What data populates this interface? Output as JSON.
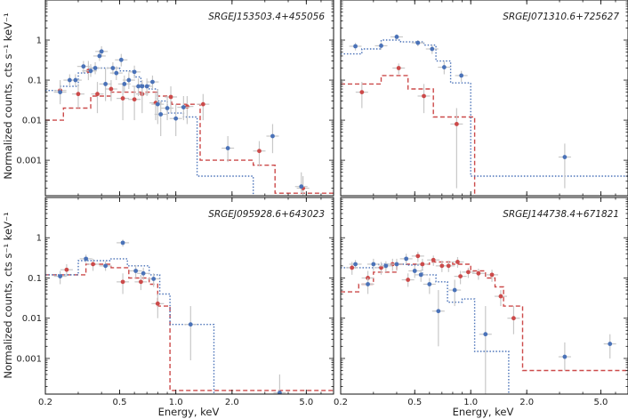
{
  "chart_data": {
    "type": "scatter",
    "xlabel": "Energy, keV",
    "ylabel": "Normalized counts, cts s⁻¹ keV⁻¹",
    "xscale": "log",
    "yscale": "log",
    "xlim": [
      0.2,
      7.0
    ],
    "ylim": [
      0.00013,
      10
    ],
    "xticks": [
      {
        "v": 0.2,
        "label": "0.2"
      },
      {
        "v": 0.5,
        "label": "0.5"
      },
      {
        "v": 1.0,
        "label": "1.0"
      },
      {
        "v": 2.0,
        "label": "2.0"
      },
      {
        "v": 5.0,
        "label": "5.0"
      }
    ],
    "yticks": [
      {
        "v": 1,
        "label": "1"
      },
      {
        "v": 0.1,
        "label": "0.1"
      },
      {
        "v": 0.01,
        "label": "0.01"
      },
      {
        "v": 0.001,
        "label": "0.001"
      }
    ],
    "colors": {
      "blue": "#4a72b8",
      "red": "#cc4a4a",
      "error": "#c8c8c8"
    },
    "panels": [
      {
        "title": "SRGEJ153503.4+455056",
        "blue_points": [
          [
            0.24,
            0.05,
            0.03,
            0.08
          ],
          [
            0.27,
            0.1,
            0.07,
            0.14
          ],
          [
            0.29,
            0.1,
            0.07,
            0.14
          ],
          [
            0.32,
            0.22,
            0.15,
            0.3
          ],
          [
            0.35,
            0.17,
            0.12,
            0.25
          ],
          [
            0.37,
            0.2,
            0.14,
            0.28
          ],
          [
            0.39,
            0.4,
            0.3,
            0.55
          ],
          [
            0.4,
            0.52,
            0.38,
            0.7
          ],
          [
            0.42,
            0.08,
            0.03,
            0.2
          ],
          [
            0.46,
            0.2,
            0.14,
            0.28
          ],
          [
            0.48,
            0.15,
            0.1,
            0.22
          ],
          [
            0.51,
            0.32,
            0.22,
            0.45
          ],
          [
            0.53,
            0.08,
            0.05,
            0.13
          ],
          [
            0.56,
            0.1,
            0.06,
            0.15
          ],
          [
            0.6,
            0.16,
            0.11,
            0.23
          ],
          [
            0.63,
            0.07,
            0.04,
            0.11
          ],
          [
            0.66,
            0.07,
            0.04,
            0.1
          ],
          [
            0.7,
            0.07,
            0.04,
            0.11
          ],
          [
            0.75,
            0.09,
            0.06,
            0.13
          ],
          [
            0.8,
            0.025,
            0.008,
            0.06
          ],
          [
            0.83,
            0.014,
            0.004,
            0.03
          ],
          [
            0.9,
            0.02,
            0.01,
            0.04
          ],
          [
            1.0,
            0.011,
            0.004,
            0.025
          ],
          [
            1.1,
            0.021,
            0.01,
            0.04
          ],
          [
            1.9,
            0.002,
            0.0009,
            0.004
          ],
          [
            3.3,
            0.004,
            0.0015,
            0.008
          ],
          [
            4.7,
            0.00022,
            0.00015,
            0.0005
          ]
        ],
        "red_points": [
          [
            0.24,
            0.055,
            0.025,
            0.1
          ],
          [
            0.3,
            0.045,
            0.02,
            0.08
          ],
          [
            0.34,
            0.17,
            0.1,
            0.3
          ],
          [
            0.38,
            0.045,
            0.015,
            0.09
          ],
          [
            0.45,
            0.06,
            0.03,
            0.1
          ],
          [
            0.52,
            0.035,
            0.01,
            0.08
          ],
          [
            0.6,
            0.033,
            0.01,
            0.07
          ],
          [
            0.66,
            0.045,
            0.015,
            0.09
          ],
          [
            0.78,
            0.027,
            0.01,
            0.05
          ],
          [
            0.94,
            0.038,
            0.015,
            0.07
          ],
          [
            1.15,
            0.022,
            0.008,
            0.04
          ],
          [
            1.4,
            0.025,
            0.01,
            0.045
          ],
          [
            2.8,
            0.0017,
            0.0007,
            0.003
          ],
          [
            4.8,
            0.0002,
            0.00013,
            0.0004
          ]
        ],
        "blue_model": [
          [
            0.2,
            0.055
          ],
          [
            0.24,
            0.07
          ],
          [
            0.3,
            0.15
          ],
          [
            0.35,
            0.2
          ],
          [
            0.4,
            0.2
          ],
          [
            0.5,
            0.17
          ],
          [
            0.6,
            0.12
          ],
          [
            0.65,
            0.075
          ],
          [
            0.72,
            0.06
          ],
          [
            0.8,
            0.03
          ],
          [
            0.9,
            0.015
          ],
          [
            1.1,
            0.012
          ],
          [
            1.3,
            0.0004
          ],
          [
            2.6,
            0.00013
          ]
        ],
        "red_model": [
          [
            0.2,
            0.01
          ],
          [
            0.25,
            0.02
          ],
          [
            0.35,
            0.04
          ],
          [
            0.45,
            0.05
          ],
          [
            0.6,
            0.05
          ],
          [
            0.8,
            0.04
          ],
          [
            0.95,
            0.025
          ],
          [
            1.15,
            0.025
          ],
          [
            1.35,
            0.001
          ],
          [
            2.6,
            0.00075
          ],
          [
            3.4,
            0.00015
          ],
          [
            7.0,
            0.00015
          ]
        ]
      },
      {
        "title": "SRGEJ071310.6+725627",
        "blue_points": [
          [
            0.24,
            0.7,
            0.55,
            0.85
          ],
          [
            0.33,
            0.72,
            0.58,
            0.88
          ],
          [
            0.4,
            1.2,
            1.0,
            1.4
          ],
          [
            0.52,
            0.85,
            0.7,
            1.0
          ],
          [
            0.62,
            0.6,
            0.45,
            0.75
          ],
          [
            0.72,
            0.21,
            0.14,
            0.3
          ],
          [
            0.89,
            0.13,
            0.09,
            0.17
          ],
          [
            3.2,
            0.0012,
            0.0002,
            0.0026
          ]
        ],
        "red_points": [
          [
            0.26,
            0.05,
            0.02,
            0.09
          ],
          [
            0.41,
            0.2,
            0.14,
            0.26
          ],
          [
            0.56,
            0.04,
            0.015,
            0.08
          ],
          [
            0.84,
            0.008,
            0.0002,
            0.02
          ]
        ],
        "blue_model": [
          [
            0.2,
            0.45
          ],
          [
            0.26,
            0.6
          ],
          [
            0.33,
            1.0
          ],
          [
            0.42,
            0.9
          ],
          [
            0.56,
            0.75
          ],
          [
            0.65,
            0.3
          ],
          [
            0.78,
            0.085
          ],
          [
            1.0,
            0.0004
          ],
          [
            7.0,
            0.0004
          ]
        ],
        "red_model": [
          [
            0.2,
            0.08
          ],
          [
            0.33,
            0.13
          ],
          [
            0.46,
            0.06
          ],
          [
            0.63,
            0.012
          ],
          [
            1.05,
            0.00013
          ]
        ]
      },
      {
        "title": "SRGEJ095928.6+643023",
        "blue_points": [
          [
            0.24,
            0.11,
            0.07,
            0.15
          ],
          [
            0.33,
            0.3,
            0.24,
            0.38
          ],
          [
            0.42,
            0.2,
            0.15,
            0.26
          ],
          [
            0.52,
            0.75,
            0.6,
            0.9
          ],
          [
            0.61,
            0.15,
            0.1,
            0.21
          ],
          [
            0.67,
            0.13,
            0.09,
            0.18
          ],
          [
            0.76,
            0.095,
            0.06,
            0.13
          ],
          [
            1.2,
            0.007,
            0.0009,
            0.02
          ],
          [
            3.6,
            0.00014,
            0.00013,
            0.0004
          ]
        ],
        "red_points": [
          [
            0.26,
            0.16,
            0.11,
            0.22
          ],
          [
            0.36,
            0.22,
            0.15,
            0.3
          ],
          [
            0.52,
            0.08,
            0.04,
            0.13
          ],
          [
            0.65,
            0.08,
            0.05,
            0.12
          ],
          [
            0.8,
            0.023,
            0.01,
            0.04
          ]
        ],
        "blue_model": [
          [
            0.2,
            0.12
          ],
          [
            0.3,
            0.27
          ],
          [
            0.45,
            0.3
          ],
          [
            0.55,
            0.2
          ],
          [
            0.72,
            0.12
          ],
          [
            0.82,
            0.04
          ],
          [
            0.93,
            0.007
          ],
          [
            1.6,
            0.00013
          ]
        ],
        "red_model": [
          [
            0.2,
            0.12
          ],
          [
            0.33,
            0.22
          ],
          [
            0.45,
            0.18
          ],
          [
            0.56,
            0.1
          ],
          [
            0.72,
            0.07
          ],
          [
            0.8,
            0.02
          ],
          [
            0.93,
            0.00016
          ],
          [
            7.0,
            0.00016
          ]
        ]
      },
      {
        "title": "SRGEJ144738.4+671821",
        "blue_points": [
          [
            0.24,
            0.22,
            0.17,
            0.28
          ],
          [
            0.28,
            0.07,
            0.04,
            0.1
          ],
          [
            0.3,
            0.22,
            0.15,
            0.3
          ],
          [
            0.35,
            0.2,
            0.14,
            0.26
          ],
          [
            0.4,
            0.22,
            0.15,
            0.3
          ],
          [
            0.45,
            0.3,
            0.22,
            0.4
          ],
          [
            0.5,
            0.15,
            0.1,
            0.2
          ],
          [
            0.54,
            0.12,
            0.08,
            0.16
          ],
          [
            0.6,
            0.07,
            0.04,
            0.1
          ],
          [
            0.67,
            0.015,
            0.002,
            0.05
          ],
          [
            0.82,
            0.05,
            0.02,
            0.09
          ],
          [
            1.2,
            0.004,
            0.00013,
            0.02
          ],
          [
            3.2,
            0.0011,
            0.0005,
            0.0025
          ],
          [
            5.6,
            0.0023,
            0.001,
            0.004
          ]
        ],
        "red_points": [
          [
            0.23,
            0.18,
            0.12,
            0.25
          ],
          [
            0.28,
            0.1,
            0.06,
            0.15
          ],
          [
            0.33,
            0.18,
            0.12,
            0.25
          ],
          [
            0.38,
            0.22,
            0.15,
            0.3
          ],
          [
            0.46,
            0.09,
            0.06,
            0.13
          ],
          [
            0.52,
            0.35,
            0.25,
            0.45
          ],
          [
            0.55,
            0.22,
            0.15,
            0.3
          ],
          [
            0.63,
            0.28,
            0.2,
            0.36
          ],
          [
            0.7,
            0.2,
            0.14,
            0.27
          ],
          [
            0.76,
            0.2,
            0.14,
            0.27
          ],
          [
            0.85,
            0.25,
            0.18,
            0.33
          ],
          [
            0.88,
            0.11,
            0.07,
            0.15
          ],
          [
            0.97,
            0.14,
            0.1,
            0.18
          ],
          [
            1.1,
            0.13,
            0.09,
            0.17
          ],
          [
            1.3,
            0.12,
            0.08,
            0.16
          ],
          [
            1.45,
            0.035,
            0.02,
            0.05
          ],
          [
            1.7,
            0.01,
            0.004,
            0.02
          ]
        ],
        "blue_model": [
          [
            0.2,
            0.18
          ],
          [
            0.32,
            0.22
          ],
          [
            0.45,
            0.21
          ],
          [
            0.55,
            0.12
          ],
          [
            0.65,
            0.08
          ],
          [
            0.75,
            0.025
          ],
          [
            0.9,
            0.03
          ],
          [
            1.05,
            0.0015
          ],
          [
            1.6,
            0.00013
          ]
        ],
        "red_model": [
          [
            0.2,
            0.045
          ],
          [
            0.25,
            0.07
          ],
          [
            0.3,
            0.14
          ],
          [
            0.4,
            0.22
          ],
          [
            0.6,
            0.25
          ],
          [
            0.8,
            0.22
          ],
          [
            1.0,
            0.15
          ],
          [
            1.2,
            0.1
          ],
          [
            1.35,
            0.06
          ],
          [
            1.5,
            0.02
          ],
          [
            1.9,
            0.0005
          ],
          [
            7.0,
            0.0005
          ]
        ]
      }
    ]
  }
}
